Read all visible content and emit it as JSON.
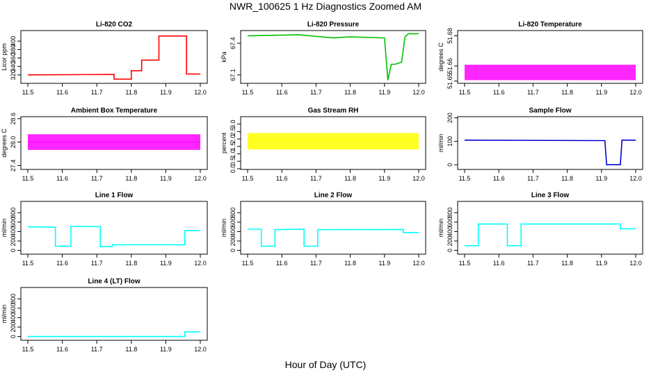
{
  "figure": {
    "title": "NWR_100625  1 Hz Diagnostics Zoomed AM",
    "xlabel": "Hour of Day (UTC)"
  },
  "chart_data": [
    {
      "type": "line",
      "title": "Li-820 CO2",
      "ylabel": "Licor ppm",
      "color": "#ff0000",
      "xlim": [
        11.5,
        12.0
      ],
      "xticks": [
        "11.5",
        "11.6",
        "11.7",
        "11.8",
        "11.9",
        "12.0"
      ],
      "ylim": [
        300,
        425
      ],
      "yticks": [
        "320",
        "340",
        "360",
        "380",
        "400"
      ],
      "x": [
        11.5,
        11.75,
        11.75,
        11.8,
        11.8,
        11.83,
        11.83,
        11.88,
        11.88,
        11.96,
        11.96,
        12.0
      ],
      "y": [
        320,
        321,
        310,
        310,
        330,
        330,
        355,
        355,
        412,
        412,
        322,
        322
      ]
    },
    {
      "type": "line",
      "title": "Li-820 Pressure",
      "ylabel": "kPa",
      "color": "#00c000",
      "xlim": [
        11.5,
        12.0
      ],
      "xticks": [
        "11.5",
        "11.6",
        "11.7",
        "11.8",
        "11.9",
        "12.0"
      ],
      "ylim": [
        67.02,
        67.52
      ],
      "yticks": [
        "67.1",
        "67.4"
      ],
      "x": [
        11.5,
        11.65,
        11.75,
        11.8,
        11.9,
        11.91,
        11.92,
        11.93,
        11.95,
        11.96,
        11.97,
        12.0
      ],
      "y": [
        67.47,
        67.48,
        67.45,
        67.46,
        67.45,
        67.05,
        67.2,
        67.2,
        67.22,
        67.46,
        67.49,
        67.49
      ]
    },
    {
      "type": "line",
      "title": "Li-820 Temperature",
      "ylabel": "degrees C",
      "color": "#ff00ff",
      "xlim": [
        11.5,
        12.0
      ],
      "xticks": [
        "11.5",
        "11.6",
        "11.7",
        "11.8",
        "11.9",
        "12.0"
      ],
      "ylim": [
        51.6485,
        51.6835
      ],
      "yticks": [
        "51.65",
        "51.66",
        "51.68"
      ],
      "x": [
        11.5,
        11.75,
        12.0
      ],
      "y": [
        51.6605,
        51.6605,
        51.6605
      ],
      "band": [
        51.6506,
        51.6605
      ]
    },
    {
      "type": "line",
      "title": "Ambient Box Temperature",
      "ylabel": "degrees C",
      "color": "#ff00ff",
      "xlim": [
        11.5,
        12.0
      ],
      "xticks": [
        "11.5",
        "11.6",
        "11.7",
        "11.8",
        "11.9",
        "12.0"
      ],
      "ylim": [
        27.3,
        28.65
      ],
      "yticks": [
        "27.4",
        "28.0",
        "28.6"
      ],
      "x": [
        11.5,
        11.75,
        12.0
      ],
      "y": [
        28.0,
        28.0,
        28.0
      ],
      "band": [
        27.8,
        28.2
      ]
    },
    {
      "type": "line",
      "title": "Gas Stream RH",
      "ylabel": "percent",
      "color": "#ffff00",
      "xlim": [
        11.5,
        12.0
      ],
      "xticks": [
        "11.5",
        "11.6",
        "11.7",
        "11.8",
        "11.9",
        "12.0"
      ],
      "ylim": [
        -0.05,
        3.5
      ],
      "yticks": [
        "0.0",
        "0.5",
        "1.0",
        "1.5",
        "2.0",
        "2.5",
        "3.0"
      ],
      "x": [
        11.5,
        11.75,
        12.0
      ],
      "y": [
        1.9,
        1.9,
        1.9
      ],
      "band": [
        1.3,
        2.4
      ]
    },
    {
      "type": "line",
      "title": "Sample Flow",
      "ylabel": "ml/min",
      "color": "#0000cc",
      "xlim": [
        11.5,
        12.0
      ],
      "xticks": [
        "11.5",
        "11.6",
        "11.7",
        "11.8",
        "11.9",
        "12.0"
      ],
      "ylim": [
        -20,
        205
      ],
      "yticks": [
        "0",
        "100",
        "200"
      ],
      "x": [
        11.5,
        11.91,
        11.915,
        11.955,
        11.96,
        12.0
      ],
      "y": [
        105,
        103,
        0,
        0,
        105,
        105
      ]
    },
    {
      "type": "line",
      "title": "Line 1 Flow",
      "ylabel": "ml/min",
      "color": "#00ffff",
      "xlim": [
        11.5,
        12.0
      ],
      "xticks": [
        "11.5",
        "11.6",
        "11.7",
        "11.8",
        "11.9",
        "12.0"
      ],
      "ylim": [
        -80,
        1040
      ],
      "yticks": [
        "0",
        "200",
        "400",
        "600",
        "800"
      ],
      "x": [
        11.5,
        11.58,
        11.58,
        11.625,
        11.625,
        11.71,
        11.71,
        11.745,
        11.745,
        11.955,
        11.955,
        12.0
      ],
      "y": [
        500,
        490,
        90,
        90,
        510,
        505,
        80,
        80,
        120,
        120,
        420,
        420
      ]
    },
    {
      "type": "line",
      "title": "Line 2 Flow",
      "ylabel": "ml/min",
      "color": "#00ffff",
      "xlim": [
        11.5,
        12.0
      ],
      "xticks": [
        "11.5",
        "11.6",
        "11.7",
        "11.8",
        "11.9",
        "12.0"
      ],
      "ylim": [
        -80,
        1040
      ],
      "yticks": [
        "0",
        "200",
        "400",
        "600",
        "800"
      ],
      "x": [
        11.5,
        11.54,
        11.54,
        11.58,
        11.58,
        11.665,
        11.665,
        11.705,
        11.705,
        11.955,
        11.955,
        12.0
      ],
      "y": [
        450,
        450,
        90,
        90,
        440,
        450,
        90,
        90,
        440,
        445,
        380,
        380
      ]
    },
    {
      "type": "line",
      "title": "Line 3 Flow",
      "ylabel": "ml/min",
      "color": "#00ffff",
      "xlim": [
        11.5,
        12.0
      ],
      "xticks": [
        "11.5",
        "11.6",
        "11.7",
        "11.8",
        "11.9",
        "12.0"
      ],
      "ylim": [
        -80,
        1040
      ],
      "yticks": [
        "0",
        "200",
        "400",
        "600",
        "800"
      ],
      "x": [
        11.5,
        11.54,
        11.54,
        11.625,
        11.625,
        11.665,
        11.665,
        11.955,
        11.955,
        12.0
      ],
      "y": [
        100,
        100,
        560,
        560,
        100,
        100,
        560,
        560,
        460,
        460
      ]
    },
    {
      "type": "line",
      "title": "Line 4 (LT) Flow",
      "ylabel": "ml/min",
      "color": "#00ffff",
      "xlim": [
        11.5,
        12.0
      ],
      "xticks": [
        "11.5",
        "11.6",
        "11.7",
        "11.8",
        "11.9",
        "12.0"
      ],
      "ylim": [
        -80,
        1040
      ],
      "yticks": [
        "0",
        "200",
        "400",
        "600",
        "800"
      ],
      "x": [
        11.5,
        11.955,
        11.955,
        12.0
      ],
      "y": [
        0,
        0,
        100,
        100
      ]
    }
  ]
}
